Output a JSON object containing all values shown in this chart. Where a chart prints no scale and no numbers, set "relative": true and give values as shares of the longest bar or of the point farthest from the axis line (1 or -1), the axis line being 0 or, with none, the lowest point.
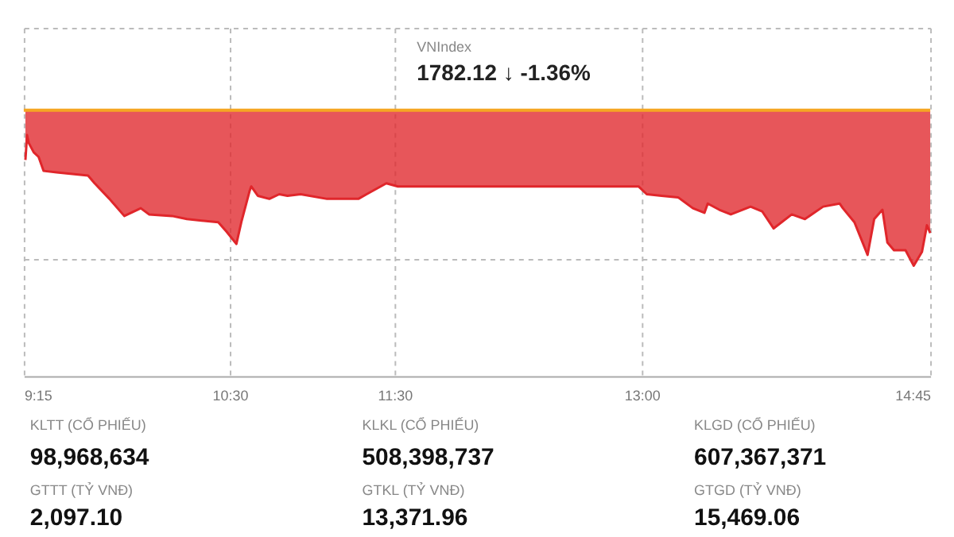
{
  "chart_data": {
    "type": "area",
    "title": "VNIndex",
    "subtitle": "1782.12 ↓ -1.36%",
    "relative": true,
    "tick_labels": "x",
    "grid": true,
    "xlim": [
      9.25,
      14.75
    ],
    "xticks": [
      {
        "value": 9.25,
        "label": "9:15"
      },
      {
        "value": 10.5,
        "label": "10:30"
      },
      {
        "value": 11.5,
        "label": "11:30"
      },
      {
        "value": 13,
        "label": "13:00"
      },
      {
        "value": 14.75,
        "label": "14:45"
      }
    ],
    "ref_lines": [
      {
        "axis": "y",
        "value": 0,
        "color": "#f5a623"
      }
    ],
    "series": [
      {
        "color": "#e0262b",
        "x": [
          9.26,
          9.27,
          9.28,
          9.31,
          9.34,
          9.37,
          9.45,
          9.64,
          9.68,
          9.77,
          9.86,
          9.96,
          10.01,
          10.15,
          10.24,
          10.43,
          10.48,
          10.54,
          10.57,
          10.62,
          10.63,
          10.67,
          10.74,
          10.8,
          10.85,
          10.93,
          11.09,
          11.28,
          11.33,
          11.45,
          11.52,
          12.98,
          13.03,
          13.12,
          13.22,
          13.31,
          13.38,
          13.4,
          13.47,
          13.54,
          13.66,
          13.73,
          13.8,
          13.91,
          13.99,
          14.1,
          14.2,
          14.22,
          14.29,
          14.37,
          14.41,
          14.46,
          14.49,
          14.53,
          14.6,
          14.65,
          14.7,
          14.73,
          14.75
        ],
        "values": [
          -0.32,
          -0.16,
          -0.21,
          -0.27,
          -0.3,
          -0.39,
          -0.4,
          -0.42,
          -0.47,
          -0.57,
          -0.68,
          -0.63,
          -0.67,
          -0.68,
          -0.7,
          -0.72,
          -0.78,
          -0.86,
          -0.72,
          -0.52,
          -0.49,
          -0.55,
          -0.57,
          -0.54,
          -0.55,
          -0.54,
          -0.57,
          -0.57,
          -0.54,
          -0.47,
          -0.49,
          -0.49,
          -0.54,
          -0.55,
          -0.56,
          -0.63,
          -0.66,
          -0.6,
          -0.64,
          -0.67,
          -0.62,
          -0.65,
          -0.76,
          -0.67,
          -0.7,
          -0.62,
          -0.6,
          -0.63,
          -0.72,
          -0.93,
          -0.7,
          -0.64,
          -0.85,
          -0.9,
          -0.9,
          -1,
          -0.91,
          -0.74,
          -0.79
        ]
      }
    ],
    "annotations": [
      "KLTT (CỔ PHIẾU)",
      "KLKL (CỔ PHIẾU)",
      "KLGD (CỔ PHIẾU)",
      "98,968,634",
      "508,398,737",
      "607,367,371",
      "GTTT (TỶ VNĐ)",
      "GTKL (TỶ VNĐ)",
      "GTGD (TỶ VNĐ)",
      "2,097.10",
      "13,371.96",
      "15,469.06"
    ]
  }
}
